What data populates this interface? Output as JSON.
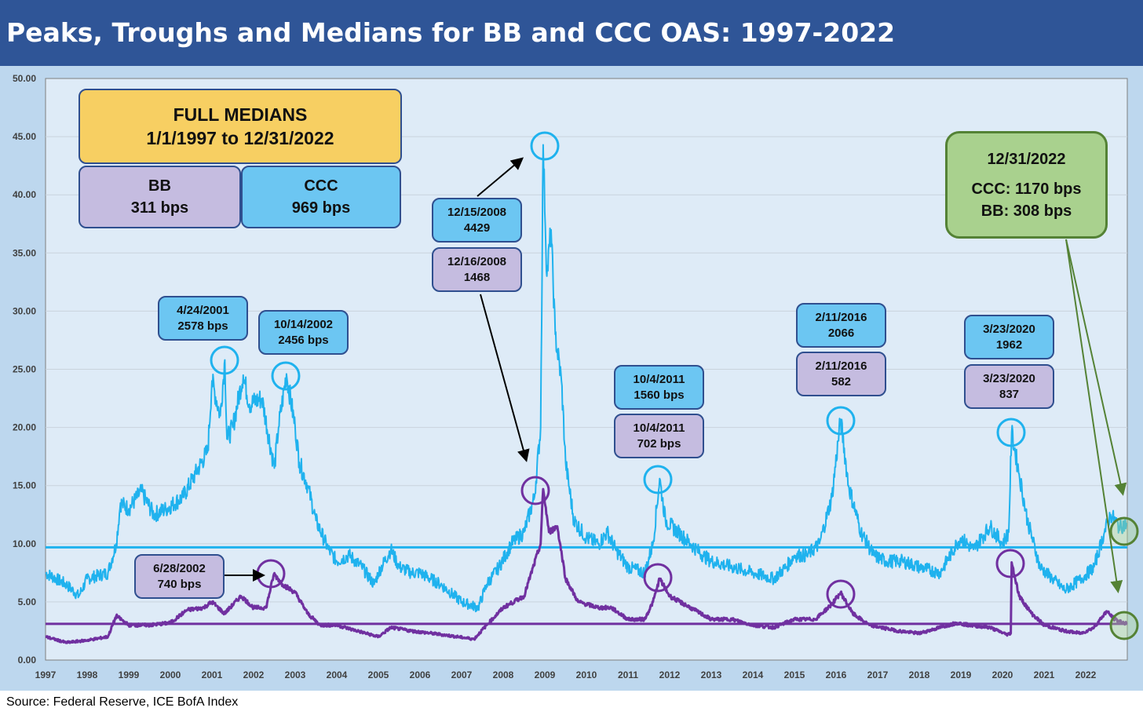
{
  "title": "Peaks, Troughs and Medians for BB and CCC OAS: 1997-2022",
  "source": "Source: Federal Reserve, ICE BofA Index",
  "colors": {
    "ccc": "#1FB2EE",
    "bb": "#7030A0",
    "green": "#548235",
    "title_bg": "#2F5597"
  },
  "medians_box": {
    "title": "FULL MEDIANS",
    "range": "1/1/1997 to 12/31/2022",
    "bb_label": "BB",
    "bb_value": "311 bps",
    "ccc_label": "CCC",
    "ccc_value": "969 bps"
  },
  "latest_box": {
    "date": "12/31/2022",
    "ccc": "CCC: 1170 bps",
    "bb": "BB: 308 bps"
  },
  "annotations": [
    {
      "date": "4/24/2001",
      "value": "2578 bps",
      "series": "CCC"
    },
    {
      "date": "10/14/2002",
      "value": "2456 bps",
      "series": "CCC"
    },
    {
      "date": "12/15/2008",
      "value": "4429",
      "series": "CCC"
    },
    {
      "date": "12/16/2008",
      "value": "1468",
      "series": "BB"
    },
    {
      "date": "10/4/2011",
      "value": "1560 bps",
      "series": "CCC"
    },
    {
      "date": "10/4/2011",
      "value": "702 bps",
      "series": "BB"
    },
    {
      "date": "2/11/2016",
      "value": "2066",
      "series": "CCC"
    },
    {
      "date": "2/11/2016",
      "value": "582",
      "series": "BB"
    },
    {
      "date": "3/23/2020",
      "value": "1962",
      "series": "CCC"
    },
    {
      "date": "3/23/2020",
      "value": "837",
      "series": "BB"
    },
    {
      "date": "6/28/2002",
      "value": "740 bps",
      "series": "BB"
    }
  ],
  "chart_data": {
    "type": "line",
    "title": "Peaks, Troughs and Medians for BB and CCC OAS: 1997-2022",
    "xlim": [
      1997,
      2023
    ],
    "ylim": [
      0,
      50
    ],
    "yticks": [
      "0.00",
      "5.00",
      "10.00",
      "15.00",
      "20.00",
      "25.00",
      "30.00",
      "35.00",
      "40.00",
      "45.00",
      "50.00"
    ],
    "xticks": [
      "1997",
      "1998",
      "1999",
      "2000",
      "2001",
      "2002",
      "2003",
      "2004",
      "2005",
      "2006",
      "2007",
      "2008",
      "2009",
      "2010",
      "2011",
      "2012",
      "2013",
      "2014",
      "2015",
      "2016",
      "2017",
      "2018",
      "2019",
      "2020",
      "2021",
      "2022"
    ],
    "medians": {
      "CCC": 9.69,
      "BB": 3.11
    },
    "series": [
      {
        "name": "CCC",
        "points": [
          [
            1997,
            7.5
          ],
          [
            1997.5,
            6.5
          ],
          [
            1997.8,
            5.5
          ],
          [
            1998,
            7
          ],
          [
            1998.5,
            7.5
          ],
          [
            1998.7,
            10
          ],
          [
            1998.8,
            13.5
          ],
          [
            1999,
            13
          ],
          [
            1999.3,
            14.5
          ],
          [
            1999.6,
            12.5
          ],
          [
            1999.9,
            13
          ],
          [
            2000.3,
            14
          ],
          [
            2000.6,
            16
          ],
          [
            2000.9,
            18
          ],
          [
            2001,
            24
          ],
          [
            2001.2,
            21
          ],
          [
            2001.31,
            25.8
          ],
          [
            2001.36,
            19
          ],
          [
            2001.5,
            20
          ],
          [
            2001.75,
            24.5
          ],
          [
            2001.9,
            22
          ],
          [
            2002.2,
            22.5
          ],
          [
            2002.5,
            16.5
          ],
          [
            2002.6,
            20
          ],
          [
            2002.79,
            24.6
          ],
          [
            2003,
            20
          ],
          [
            2003.1,
            17
          ],
          [
            2003.3,
            15
          ],
          [
            2003.5,
            12
          ],
          [
            2003.8,
            9.5
          ],
          [
            2004,
            8.5
          ],
          [
            2004.3,
            9
          ],
          [
            2004.6,
            8
          ],
          [
            2004.9,
            6.5
          ],
          [
            2005,
            7.5
          ],
          [
            2005.3,
            9.5
          ],
          [
            2005.5,
            8
          ],
          [
            2005.8,
            7.5
          ],
          [
            2006,
            7.5
          ],
          [
            2006.5,
            6.5
          ],
          [
            2007,
            5
          ],
          [
            2007.4,
            4.5
          ],
          [
            2007.6,
            6.5
          ],
          [
            2007.9,
            8
          ],
          [
            2008.2,
            10
          ],
          [
            2008.5,
            11
          ],
          [
            2008.75,
            14
          ],
          [
            2008.9,
            20
          ],
          [
            2008.96,
            44.3
          ],
          [
            2009.05,
            33
          ],
          [
            2009.15,
            37
          ],
          [
            2009.25,
            28
          ],
          [
            2009.4,
            24
          ],
          [
            2009.5,
            17
          ],
          [
            2009.7,
            12
          ],
          [
            2010,
            10.5
          ],
          [
            2010.3,
            10
          ],
          [
            2010.5,
            11
          ],
          [
            2010.7,
            9.5
          ],
          [
            2011,
            8
          ],
          [
            2011.4,
            7.5
          ],
          [
            2011.6,
            10
          ],
          [
            2011.76,
            15.6
          ],
          [
            2011.9,
            12
          ],
          [
            2012.2,
            11
          ],
          [
            2012.5,
            10
          ],
          [
            2012.8,
            9
          ],
          [
            2013,
            8.5
          ],
          [
            2013.5,
            8
          ],
          [
            2014,
            7.5
          ],
          [
            2014.5,
            7
          ],
          [
            2014.8,
            8
          ],
          [
            2015,
            9
          ],
          [
            2015.3,
            9
          ],
          [
            2015.6,
            10
          ],
          [
            2015.9,
            14
          ],
          [
            2016.11,
            20.7
          ],
          [
            2016.3,
            15
          ],
          [
            2016.6,
            11
          ],
          [
            2016.9,
            9
          ],
          [
            2017.2,
            8.5
          ],
          [
            2017.6,
            8.5
          ],
          [
            2018,
            8
          ],
          [
            2018.5,
            7.5
          ],
          [
            2018.9,
            10
          ],
          [
            2019,
            10.5
          ],
          [
            2019.3,
            9.5
          ],
          [
            2019.7,
            11.5
          ],
          [
            2020,
            10
          ],
          [
            2020.15,
            11
          ],
          [
            2020.22,
            19.6
          ],
          [
            2020.4,
            16
          ],
          [
            2020.6,
            12
          ],
          [
            2020.9,
            8
          ],
          [
            2021.2,
            7
          ],
          [
            2021.5,
            6
          ],
          [
            2021.9,
            7
          ],
          [
            2022.2,
            8
          ],
          [
            2022.45,
            11
          ],
          [
            2022.6,
            12.5
          ],
          [
            2022.8,
            11.5
          ],
          [
            2022.99,
            11.7
          ]
        ]
      },
      {
        "name": "BB",
        "points": [
          [
            1997,
            2
          ],
          [
            1997.5,
            1.5
          ],
          [
            1998,
            1.7
          ],
          [
            1998.5,
            2
          ],
          [
            1998.7,
            3.8
          ],
          [
            1999,
            3
          ],
          [
            1999.5,
            3
          ],
          [
            2000,
            3.2
          ],
          [
            2000.4,
            4.3
          ],
          [
            2000.8,
            4.5
          ],
          [
            2001,
            5
          ],
          [
            2001.3,
            4
          ],
          [
            2001.7,
            5.5
          ],
          [
            2002,
            4.5
          ],
          [
            2002.3,
            4.5
          ],
          [
            2002.49,
            7.4
          ],
          [
            2002.7,
            6.5
          ],
          [
            2003,
            5.8
          ],
          [
            2003.3,
            4
          ],
          [
            2003.6,
            3
          ],
          [
            2004,
            3
          ],
          [
            2004.5,
            2.5
          ],
          [
            2005,
            2
          ],
          [
            2005.3,
            2.8
          ],
          [
            2005.8,
            2.5
          ],
          [
            2006.5,
            2.2
          ],
          [
            2007.3,
            1.8
          ],
          [
            2007.6,
            3
          ],
          [
            2008,
            4.5
          ],
          [
            2008.5,
            5.5
          ],
          [
            2008.9,
            10
          ],
          [
            2008.96,
            14.7
          ],
          [
            2009.1,
            11
          ],
          [
            2009.3,
            11.5
          ],
          [
            2009.5,
            7
          ],
          [
            2009.8,
            5
          ],
          [
            2010.3,
            4.5
          ],
          [
            2010.6,
            4.5
          ],
          [
            2011,
            3.5
          ],
          [
            2011.4,
            3.5
          ],
          [
            2011.6,
            5
          ],
          [
            2011.76,
            7
          ],
          [
            2012,
            5.5
          ],
          [
            2012.5,
            4.5
          ],
          [
            2013,
            3.5
          ],
          [
            2013.5,
            3.5
          ],
          [
            2014,
            3
          ],
          [
            2014.5,
            2.8
          ],
          [
            2015,
            3.5
          ],
          [
            2015.5,
            3.5
          ],
          [
            2015.9,
            4.8
          ],
          [
            2016.11,
            5.8
          ],
          [
            2016.4,
            4
          ],
          [
            2016.8,
            3
          ],
          [
            2017.5,
            2.5
          ],
          [
            2018,
            2.3
          ],
          [
            2018.9,
            3.2
          ],
          [
            2019.2,
            3
          ],
          [
            2019.7,
            2.8
          ],
          [
            2020.1,
            2.2
          ],
          [
            2020.2,
            2.3
          ],
          [
            2020.22,
            8.4
          ],
          [
            2020.4,
            5.5
          ],
          [
            2020.7,
            4
          ],
          [
            2021,
            3
          ],
          [
            2021.5,
            2.5
          ],
          [
            2021.9,
            2.3
          ],
          [
            2022.2,
            2.8
          ],
          [
            2022.5,
            4.2
          ],
          [
            2022.7,
            3.5
          ],
          [
            2022.99,
            3.1
          ]
        ]
      }
    ]
  }
}
